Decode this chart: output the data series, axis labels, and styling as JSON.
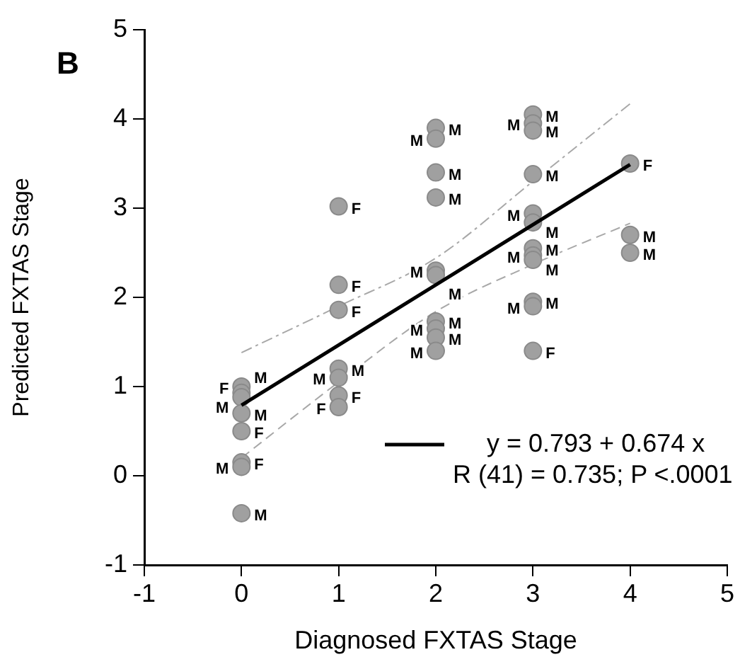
{
  "chart_data": {
    "type": "scatter",
    "xlabel": "Diagnosed FXTAS Stage",
    "ylabel": "Predicted FXTAS Stage",
    "annotations": [
      "B",
      "R (41) = 0.735; P <.0001"
    ],
    "xlim": [
      -1,
      5
    ],
    "xticks": [
      -1,
      0,
      1,
      2,
      3,
      4,
      5
    ],
    "ylim": [
      -1,
      5
    ],
    "yticks": [
      -1,
      0,
      1,
      2,
      3,
      4,
      5
    ],
    "legend": "bottom right",
    "marker": "circle",
    "series": [
      {
        "color": "#a0a0a0",
        "x": [
          0,
          0,
          0,
          0,
          0,
          0,
          0,
          0,
          1,
          1,
          1,
          1,
          1,
          1,
          1,
          2,
          2,
          2,
          2,
          2,
          2,
          2,
          2,
          2,
          2,
          3,
          3,
          3,
          3,
          3,
          3,
          3,
          3,
          3,
          3,
          3,
          3,
          4,
          4,
          4
        ],
        "values": [
          1.0,
          0.93,
          0.88,
          0.7,
          0.5,
          0.15,
          0.1,
          -0.42,
          3.02,
          2.14,
          1.86,
          1.2,
          1.1,
          0.9,
          0.77,
          3.9,
          3.78,
          3.4,
          3.12,
          2.3,
          2.25,
          1.73,
          1.65,
          1.55,
          1.4,
          4.05,
          3.95,
          3.87,
          3.38,
          2.94,
          2.84,
          2.55,
          2.47,
          2.42,
          1.95,
          1.9,
          1.4,
          3.5,
          2.7,
          2.5
        ],
        "value_labels": [
          "F",
          "M",
          "M",
          "M",
          "F",
          "F",
          "M",
          "M",
          "F",
          "F",
          "F",
          "M",
          "M",
          "F",
          "F",
          "M",
          "M",
          "M",
          "M",
          "M",
          "M",
          "M",
          "M",
          "M",
          "M",
          "M",
          "M",
          "M",
          "M",
          "M",
          "M",
          "M",
          "M",
          "M",
          "M",
          "M",
          "F",
          "F",
          "M",
          "M"
        ]
      },
      {
        "type": "line",
        "name": "y = 0.793 + 0.674 x",
        "color": "#000000",
        "marker": "none",
        "line_style": "solid",
        "x": [
          0,
          4
        ],
        "values": [
          0.79,
          3.49
        ]
      },
      {
        "type": "line",
        "color": "#a8a8a8",
        "marker": "none",
        "line_style": "dotted",
        "x": [
          0,
          1,
          2,
          3,
          4
        ],
        "values": [
          1.38,
          1.9,
          2.44,
          3.3,
          4.17
        ]
      },
      {
        "type": "line",
        "color": "#a8a8a8",
        "marker": "none",
        "line_style": "dashed",
        "x": [
          0,
          1,
          2,
          3,
          4
        ],
        "values": [
          0.2,
          1.05,
          1.84,
          2.37,
          2.83
        ]
      }
    ]
  }
}
